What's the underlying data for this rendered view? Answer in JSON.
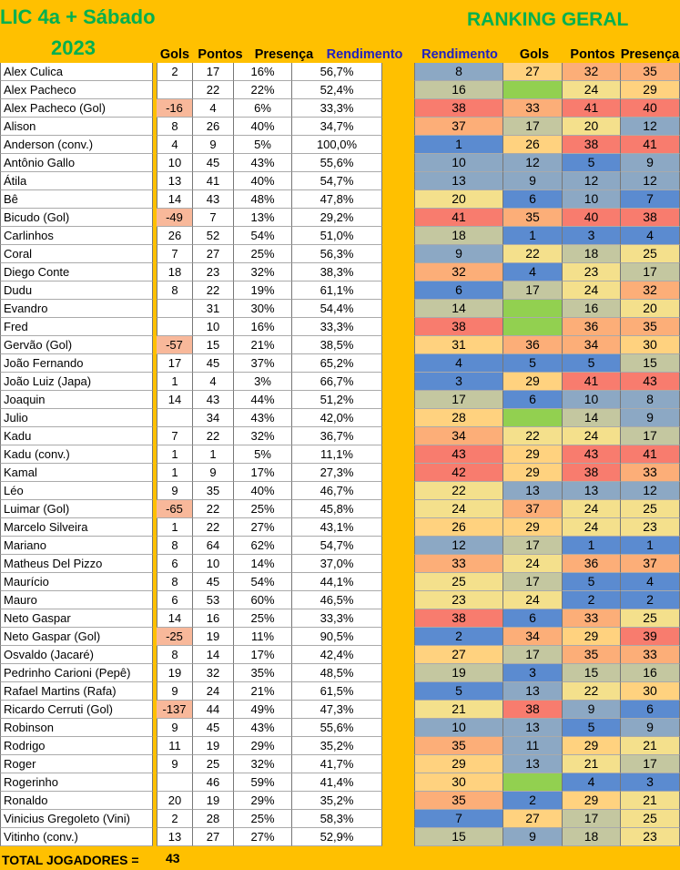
{
  "title_line1": "LIC 4a + Sábado",
  "title_line2": "2023",
  "ranking_title": "RANKING GERAL",
  "headers": {
    "gols": "Gols",
    "pontos": "Pontos",
    "presenca": "Presença",
    "rendimento": "Rendimento",
    "rank_rendimento": "Rendimento",
    "rank_gols": "Gols",
    "rank_pontos": "Pontos",
    "rank_presenca": "Presença"
  },
  "colors": {
    "background": "#FFC000",
    "title_green": "#00B050",
    "header_blue": "#2020C0",
    "scale": [
      "#5B8BD0",
      "#8CA8C4",
      "#C4C7A0",
      "#F4E08C",
      "#FFD27F",
      "#FCAE78",
      "#F87C6E"
    ],
    "no_goal_green": "#92D050",
    "negative_goals": "#F8B89A"
  },
  "players": [
    {
      "name": "Alex Culica",
      "gols": "2",
      "pontos": "17",
      "presenca": "16%",
      "rendimento": "56,7%",
      "r_rend": "8",
      "r_gols": "27",
      "r_pts": "32",
      "r_pres": "35"
    },
    {
      "name": "Alex Pacheco",
      "gols": "",
      "pontos": "22",
      "presenca": "22%",
      "rendimento": "52,4%",
      "r_rend": "16",
      "r_gols": "",
      "r_pts": "24",
      "r_pres": "29"
    },
    {
      "name": "Alex Pacheco (Gol)",
      "gols": "-16",
      "pontos": "4",
      "presenca": "6%",
      "rendimento": "33,3%",
      "r_rend": "38",
      "r_gols": "33",
      "r_pts": "41",
      "r_pres": "40"
    },
    {
      "name": "Alison",
      "gols": "8",
      "pontos": "26",
      "presenca": "40%",
      "rendimento": "34,7%",
      "r_rend": "37",
      "r_gols": "17",
      "r_pts": "20",
      "r_pres": "12"
    },
    {
      "name": "Anderson (conv.)",
      "gols": "4",
      "pontos": "9",
      "presenca": "5%",
      "rendimento": "100,0%",
      "r_rend": "1",
      "r_gols": "26",
      "r_pts": "38",
      "r_pres": "41"
    },
    {
      "name": "Antônio Gallo",
      "gols": "10",
      "pontos": "45",
      "presenca": "43%",
      "rendimento": "55,6%",
      "r_rend": "10",
      "r_gols": "12",
      "r_pts": "5",
      "r_pres": "9"
    },
    {
      "name": "Átila",
      "gols": "13",
      "pontos": "41",
      "presenca": "40%",
      "rendimento": "54,7%",
      "r_rend": "13",
      "r_gols": "9",
      "r_pts": "12",
      "r_pres": "12"
    },
    {
      "name": "Bê",
      "gols": "14",
      "pontos": "43",
      "presenca": "48%",
      "rendimento": "47,8%",
      "r_rend": "20",
      "r_gols": "6",
      "r_pts": "10",
      "r_pres": "7"
    },
    {
      "name": "Bicudo (Gol)",
      "gols": "-49",
      "pontos": "7",
      "presenca": "13%",
      "rendimento": "29,2%",
      "r_rend": "41",
      "r_gols": "35",
      "r_pts": "40",
      "r_pres": "38"
    },
    {
      "name": "Carlinhos",
      "gols": "26",
      "pontos": "52",
      "presenca": "54%",
      "rendimento": "51,0%",
      "r_rend": "18",
      "r_gols": "1",
      "r_pts": "3",
      "r_pres": "4"
    },
    {
      "name": "Coral",
      "gols": "7",
      "pontos": "27",
      "presenca": "25%",
      "rendimento": "56,3%",
      "r_rend": "9",
      "r_gols": "22",
      "r_pts": "18",
      "r_pres": "25"
    },
    {
      "name": "Diego Conte",
      "gols": "18",
      "pontos": "23",
      "presenca": "32%",
      "rendimento": "38,3%",
      "r_rend": "32",
      "r_gols": "4",
      "r_pts": "23",
      "r_pres": "17"
    },
    {
      "name": "Dudu",
      "gols": "8",
      "pontos": "22",
      "presenca": "19%",
      "rendimento": "61,1%",
      "r_rend": "6",
      "r_gols": "17",
      "r_pts": "24",
      "r_pres": "32"
    },
    {
      "name": "Evandro",
      "gols": "",
      "pontos": "31",
      "presenca": "30%",
      "rendimento": "54,4%",
      "r_rend": "14",
      "r_gols": "",
      "r_pts": "16",
      "r_pres": "20"
    },
    {
      "name": "Fred",
      "gols": "",
      "pontos": "10",
      "presenca": "16%",
      "rendimento": "33,3%",
      "r_rend": "38",
      "r_gols": "",
      "r_pts": "36",
      "r_pres": "35"
    },
    {
      "name": "Gervão (Gol)",
      "gols": "-57",
      "pontos": "15",
      "presenca": "21%",
      "rendimento": "38,5%",
      "r_rend": "31",
      "r_gols": "36",
      "r_pts": "34",
      "r_pres": "30"
    },
    {
      "name": "João Fernando",
      "gols": "17",
      "pontos": "45",
      "presenca": "37%",
      "rendimento": "65,2%",
      "r_rend": "4",
      "r_gols": "5",
      "r_pts": "5",
      "r_pres": "15"
    },
    {
      "name": "João Luiz (Japa)",
      "gols": "1",
      "pontos": "4",
      "presenca": "3%",
      "rendimento": "66,7%",
      "r_rend": "3",
      "r_gols": "29",
      "r_pts": "41",
      "r_pres": "43"
    },
    {
      "name": "Joaquin",
      "gols": "14",
      "pontos": "43",
      "presenca": "44%",
      "rendimento": "51,2%",
      "r_rend": "17",
      "r_gols": "6",
      "r_pts": "10",
      "r_pres": "8"
    },
    {
      "name": "Julio",
      "gols": "",
      "pontos": "34",
      "presenca": "43%",
      "rendimento": "42,0%",
      "r_rend": "28",
      "r_gols": "",
      "r_pts": "14",
      "r_pres": "9"
    },
    {
      "name": "Kadu",
      "gols": "7",
      "pontos": "22",
      "presenca": "32%",
      "rendimento": "36,7%",
      "r_rend": "34",
      "r_gols": "22",
      "r_pts": "24",
      "r_pres": "17"
    },
    {
      "name": "Kadu (conv.)",
      "gols": "1",
      "pontos": "1",
      "presenca": "5%",
      "rendimento": "11,1%",
      "r_rend": "43",
      "r_gols": "29",
      "r_pts": "43",
      "r_pres": "41"
    },
    {
      "name": "Kamal",
      "gols": "1",
      "pontos": "9",
      "presenca": "17%",
      "rendimento": "27,3%",
      "r_rend": "42",
      "r_gols": "29",
      "r_pts": "38",
      "r_pres": "33"
    },
    {
      "name": "Léo",
      "gols": "9",
      "pontos": "35",
      "presenca": "40%",
      "rendimento": "46,7%",
      "r_rend": "22",
      "r_gols": "13",
      "r_pts": "13",
      "r_pres": "12"
    },
    {
      "name": "Luimar (Gol)",
      "gols": "-65",
      "pontos": "22",
      "presenca": "25%",
      "rendimento": "45,8%",
      "r_rend": "24",
      "r_gols": "37",
      "r_pts": "24",
      "r_pres": "25"
    },
    {
      "name": "Marcelo Silveira",
      "gols": "1",
      "pontos": "22",
      "presenca": "27%",
      "rendimento": "43,1%",
      "r_rend": "26",
      "r_gols": "29",
      "r_pts": "24",
      "r_pres": "23"
    },
    {
      "name": "Mariano",
      "gols": "8",
      "pontos": "64",
      "presenca": "62%",
      "rendimento": "54,7%",
      "r_rend": "12",
      "r_gols": "17",
      "r_pts": "1",
      "r_pres": "1"
    },
    {
      "name": "Matheus Del Pizzo",
      "gols": "6",
      "pontos": "10",
      "presenca": "14%",
      "rendimento": "37,0%",
      "r_rend": "33",
      "r_gols": "24",
      "r_pts": "36",
      "r_pres": "37"
    },
    {
      "name": "Maurício",
      "gols": "8",
      "pontos": "45",
      "presenca": "54%",
      "rendimento": "44,1%",
      "r_rend": "25",
      "r_gols": "17",
      "r_pts": "5",
      "r_pres": "4"
    },
    {
      "name": "Mauro",
      "gols": "6",
      "pontos": "53",
      "presenca": "60%",
      "rendimento": "46,5%",
      "r_rend": "23",
      "r_gols": "24",
      "r_pts": "2",
      "r_pres": "2"
    },
    {
      "name": "Neto Gaspar",
      "gols": "14",
      "pontos": "16",
      "presenca": "25%",
      "rendimento": "33,3%",
      "r_rend": "38",
      "r_gols": "6",
      "r_pts": "33",
      "r_pres": "25"
    },
    {
      "name": "Neto Gaspar (Gol)",
      "gols": "-25",
      "pontos": "19",
      "presenca": "11%",
      "rendimento": "90,5%",
      "r_rend": "2",
      "r_gols": "34",
      "r_pts": "29",
      "r_pres": "39"
    },
    {
      "name": "Osvaldo (Jacaré)",
      "gols": "8",
      "pontos": "14",
      "presenca": "17%",
      "rendimento": "42,4%",
      "r_rend": "27",
      "r_gols": "17",
      "r_pts": "35",
      "r_pres": "33"
    },
    {
      "name": "Pedrinho Carioni (Pepê)",
      "gols": "19",
      "pontos": "32",
      "presenca": "35%",
      "rendimento": "48,5%",
      "r_rend": "19",
      "r_gols": "3",
      "r_pts": "15",
      "r_pres": "16"
    },
    {
      "name": "Rafael Martins (Rafa)",
      "gols": "9",
      "pontos": "24",
      "presenca": "21%",
      "rendimento": "61,5%",
      "r_rend": "5",
      "r_gols": "13",
      "r_pts": "22",
      "r_pres": "30"
    },
    {
      "name": "Ricardo Cerruti (Gol)",
      "gols": "-137",
      "pontos": "44",
      "presenca": "49%",
      "rendimento": "47,3%",
      "r_rend": "21",
      "r_gols": "38",
      "r_pts": "9",
      "r_pres": "6"
    },
    {
      "name": "Robinson",
      "gols": "9",
      "pontos": "45",
      "presenca": "43%",
      "rendimento": "55,6%",
      "r_rend": "10",
      "r_gols": "13",
      "r_pts": "5",
      "r_pres": "9"
    },
    {
      "name": "Rodrigo",
      "gols": "11",
      "pontos": "19",
      "presenca": "29%",
      "rendimento": "35,2%",
      "r_rend": "35",
      "r_gols": "11",
      "r_pts": "29",
      "r_pres": "21"
    },
    {
      "name": "Roger",
      "gols": "9",
      "pontos": "25",
      "presenca": "32%",
      "rendimento": "41,7%",
      "r_rend": "29",
      "r_gols": "13",
      "r_pts": "21",
      "r_pres": "17"
    },
    {
      "name": "Rogerinho",
      "gols": "",
      "pontos": "46",
      "presenca": "59%",
      "rendimento": "41,4%",
      "r_rend": "30",
      "r_gols": "",
      "r_pts": "4",
      "r_pres": "3"
    },
    {
      "name": "Ronaldo",
      "gols": "20",
      "pontos": "19",
      "presenca": "29%",
      "rendimento": "35,2%",
      "r_rend": "35",
      "r_gols": "2",
      "r_pts": "29",
      "r_pres": "21"
    },
    {
      "name": "Vinicius Gregoleto (Vini)",
      "gols": "2",
      "pontos": "28",
      "presenca": "25%",
      "rendimento": "58,3%",
      "r_rend": "7",
      "r_gols": "27",
      "r_pts": "17",
      "r_pres": "25"
    },
    {
      "name": "Vitinho (conv.)",
      "gols": "13",
      "pontos": "27",
      "presenca": "27%",
      "rendimento": "52,9%",
      "r_rend": "15",
      "r_gols": "9",
      "r_pts": "18",
      "r_pres": "23"
    }
  ],
  "total_label": "TOTAL JOGADORES =",
  "total_value": "43"
}
